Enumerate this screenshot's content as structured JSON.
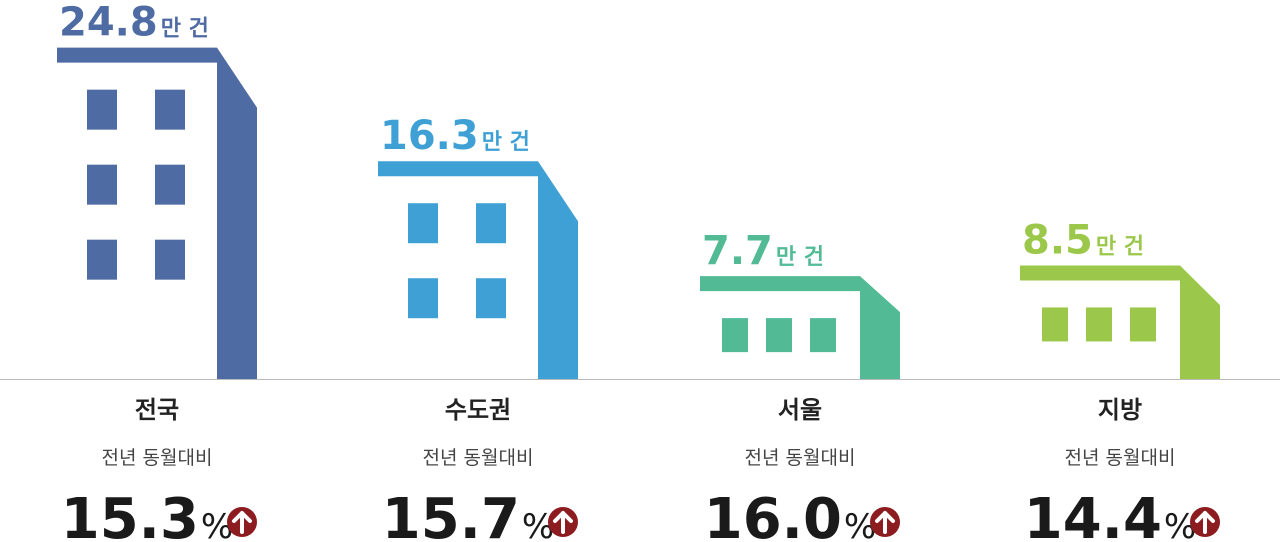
{
  "chart_data": {
    "type": "bar",
    "categories": [
      "전국",
      "수도권",
      "서울",
      "지방"
    ],
    "values": [
      24.8,
      16.3,
      7.7,
      8.5
    ],
    "value_unit": "만 건",
    "colors": [
      "#4f6ba4",
      "#3fa0d6",
      "#52ba95",
      "#9bc84b"
    ],
    "ylim": [
      0,
      25
    ],
    "change_caption": "전년 동월대비",
    "change_labels": [
      "15.3",
      "15.7",
      "16.0",
      "14.4"
    ],
    "change_unit": "%"
  }
}
